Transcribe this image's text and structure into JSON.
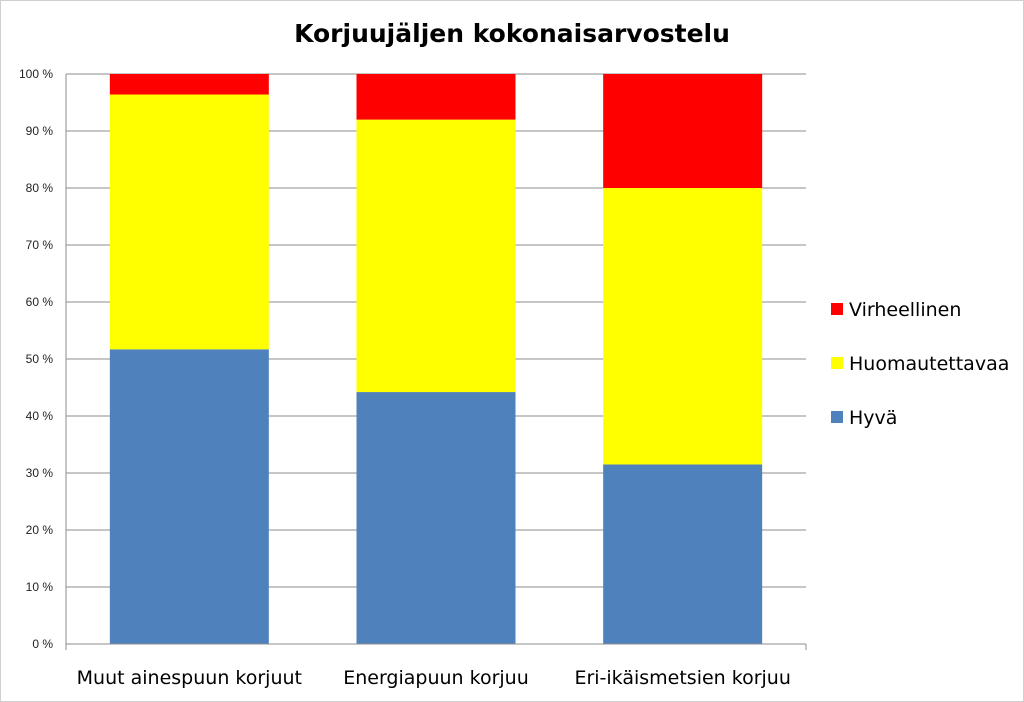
{
  "chart_data": {
    "type": "bar",
    "stacked": true,
    "title": "Korjuujäljen kokonaisarvostelu",
    "categories": [
      "Muut ainespuun korjuut",
      "Energiapuun korjuu",
      "Eri-ikäismetsien korjuu"
    ],
    "series": [
      {
        "name": "Hyvä",
        "color": "#4F81BD",
        "values": [
          51.7,
          44.2,
          31.5
        ]
      },
      {
        "name": "Huomautettavaa",
        "color": "#FFFF00",
        "values": [
          44.7,
          47.8,
          48.5
        ]
      },
      {
        "name": "Virheellinen",
        "color": "#FF0000",
        "values": [
          3.6,
          8.0,
          20.0
        ]
      }
    ],
    "y_ticks": [
      "0 %",
      "10 %",
      "20 %",
      "30 %",
      "40 %",
      "50 %",
      "60 %",
      "70 %",
      "80 %",
      "90 %",
      "100 %"
    ],
    "ylim": [
      0,
      100
    ],
    "grid": true,
    "legend_position": "right"
  }
}
